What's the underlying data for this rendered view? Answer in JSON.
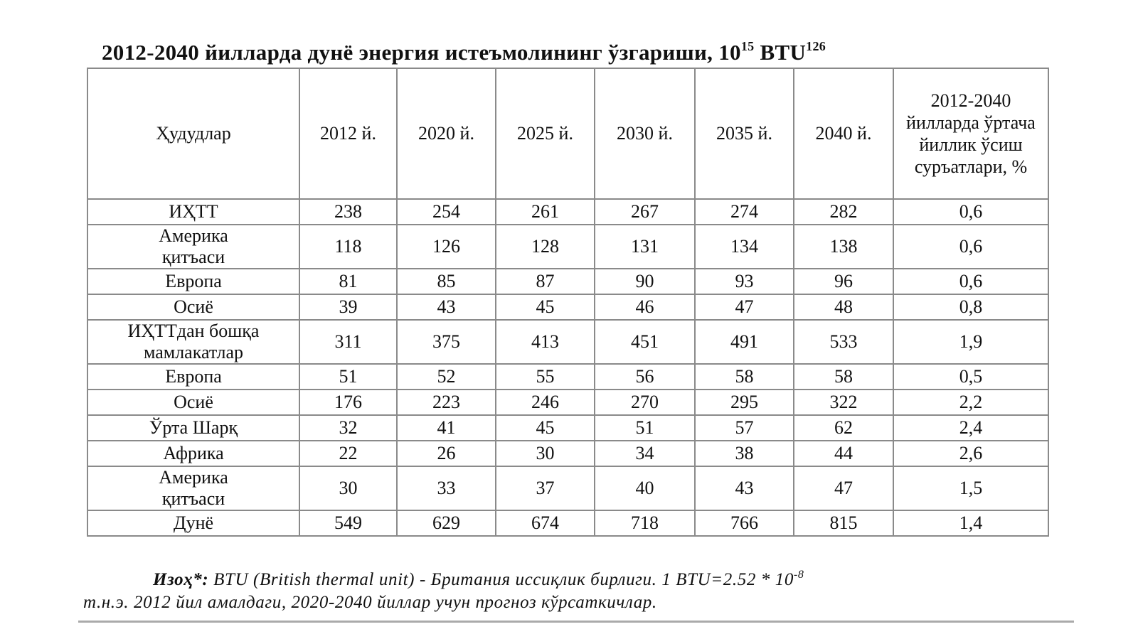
{
  "title": {
    "text": "2012-2040 йилларда дунё энергия истеъмолининг ўзгариши, 10",
    "exponent": "15",
    "unit": " BTU",
    "footnote_ref": "126"
  },
  "table": {
    "header": [
      "Ҳудудлар",
      "2012 й.",
      "2020 й.",
      "2025 й.",
      "2030 й.",
      "2035 й.",
      "2040 й.",
      "2012-2040 йилларда ўртача йиллик ўсиш суръатлари, %"
    ],
    "rows": [
      [
        "ИҲТТ",
        "238",
        "254",
        "261",
        "267",
        "274",
        "282",
        "0,6"
      ],
      [
        "Америка қитъаси",
        "118",
        "126",
        "128",
        "131",
        "134",
        "138",
        "0,6"
      ],
      [
        "Европа",
        "81",
        "85",
        "87",
        "90",
        "93",
        "96",
        "0,6"
      ],
      [
        "Осиё",
        "39",
        "43",
        "45",
        "46",
        "47",
        "48",
        "0,8"
      ],
      [
        "ИҲТТдан бошқа мамлакатлар",
        "311",
        "375",
        "413",
        "451",
        "491",
        "533",
        "1,9"
      ],
      [
        "Европа",
        "51",
        "52",
        "55",
        "56",
        "58",
        "58",
        "0,5"
      ],
      [
        "Осиё",
        "176",
        "223",
        "246",
        "270",
        "295",
        "322",
        "2,2"
      ],
      [
        "Ўрта Шарқ",
        "32",
        "41",
        "45",
        "51",
        "57",
        "62",
        "2,4"
      ],
      [
        "Африка",
        "22",
        "26",
        "30",
        "34",
        "38",
        "44",
        "2,6"
      ],
      [
        "Америка қитъаси",
        "30",
        "33",
        "37",
        "40",
        "43",
        "47",
        "1,5"
      ],
      [
        "Дунё",
        "549",
        "629",
        "674",
        "718",
        "766",
        "815",
        "1,4"
      ]
    ]
  },
  "note": {
    "label": "Изоҳ*:",
    "text": " BTU (British thermal unit) - Британия иссиқлик бирлиги. 1 BTU=2.52 * 10",
    "exponent": "-8",
    "text_continued": "т.н.э. 2012 йил амалдаги, 2020-2040 йиллар учун прогноз кўрсаткичлар."
  }
}
